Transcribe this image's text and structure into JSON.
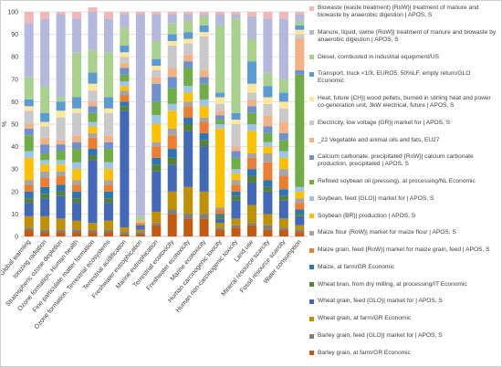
{
  "chart_data": {
    "type": "stacked_bar",
    "y_label": "%",
    "ylim": [
      0,
      100
    ],
    "yticks": [
      0,
      10,
      20,
      30,
      40,
      50,
      60,
      70,
      80,
      90,
      100
    ],
    "grid": true,
    "categories": [
      "Global warming",
      "Ionizing radiation",
      "Stratospheric ozone depletion",
      "Ozone formation, Human health",
      "Fine particulate matter formation",
      "Ozone formation, Terrestrial ecosystems",
      "Terrestrial acidification",
      "Freshwater eutrophication",
      "Marine eutrophication",
      "Terrestrial ecotoxicity",
      "Freshwater ecotoxicity",
      "Marine ecotoxicity",
      "Human carcinogenic toxicity",
      "Human non-carcinogenic toxicity",
      "Land use",
      "Mineral resource scarcity",
      "Fossil resource scarcity",
      "Water consumption"
    ],
    "series": [
      {
        "name": "Biowaste (waste treatment) {RoW}| treatment of manure and biowaste by anaerobic digestion | APOS, S",
        "color": "#f4b6b6",
        "values": [
          5,
          3,
          1,
          3,
          2,
          3,
          1,
          1,
          1,
          1,
          1,
          1,
          1,
          1,
          2,
          3,
          3,
          1
        ]
      },
      {
        "name": "Manure, liquid, swine {RoW}| treatment of manure and biowaste by anaerobic digestion | APOS, S",
        "color": "#b4b8dc",
        "values": [
          24,
          30,
          37,
          15,
          17,
          15,
          6,
          90,
          12,
          4,
          3,
          1,
          5,
          2,
          10,
          24,
          27,
          3
        ]
      },
      {
        "name": "Diesel, combusted in industrial equipment/US",
        "color": "#a9d18e",
        "values": [
          10,
          12,
          2,
          20,
          10,
          20,
          8,
          2,
          8,
          5,
          5,
          4,
          30,
          42,
          10,
          6,
          6,
          2
        ]
      },
      {
        "name": "Transport, truck <10t, EURO5, 50%LF, empty return/GLO Economic",
        "color": "#5b9bd5",
        "values": [
          3,
          4,
          4,
          5,
          5,
          5,
          3,
          0,
          3,
          3,
          3,
          3,
          2,
          3,
          10,
          5,
          4,
          2
        ]
      },
      {
        "name": "Heat, future {CH}| wood pellets, burned in stirling heat and power co-generation unit, 3kW electrical, future | APOS, S",
        "color": "#ffe699",
        "values": [
          2,
          2,
          3,
          2,
          3,
          2,
          2,
          0,
          2,
          2,
          2,
          2,
          3,
          2,
          4,
          3,
          3,
          2
        ]
      },
      {
        "name": "Electricity, low voltage {GR}| market for | APOS, S",
        "color": "#c9c9c9",
        "values": [
          6,
          5,
          10,
          10,
          5,
          10,
          3,
          0,
          3,
          10,
          5,
          15,
          3,
          10,
          3,
          5,
          6,
          2
        ]
      },
      {
        "name": "_22 Vegetable and animal oils and fats, EU27",
        "color": "#f4b183",
        "values": [
          2,
          3,
          2,
          3,
          2,
          3,
          2,
          1,
          3,
          4,
          3,
          3,
          2,
          2,
          3,
          5,
          5,
          14
        ]
      },
      {
        "name": "Calcium carbonate, precipitated {RoW}| calcium carbonate production, precipitated | APOS, S",
        "color": "#6f8fcf",
        "values": [
          3,
          4,
          3,
          3,
          3,
          3,
          3,
          0,
          8,
          5,
          3,
          3,
          2,
          3,
          3,
          3,
          3,
          2
        ]
      },
      {
        "name": "Refined soybean oil (pressing), at processing/NL Economic",
        "color": "#70ad47",
        "values": [
          7,
          3,
          4,
          6,
          4,
          6,
          3,
          0,
          6,
          7,
          8,
          7,
          2,
          5,
          5,
          4,
          5,
          50
        ]
      },
      {
        "name": "Soybean, feed {GLO}| market for | APOS, S",
        "color": "#9dc3e6",
        "values": [
          3,
          2,
          2,
          3,
          2,
          3,
          2,
          0,
          4,
          3,
          3,
          3,
          2,
          2,
          3,
          2,
          3,
          2
        ]
      },
      {
        "name": "Soybean {BR}| production | APOS, S",
        "color": "#ffc000",
        "values": [
          10,
          3,
          3,
          5,
          3,
          5,
          2,
          0,
          8,
          8,
          4,
          5,
          35,
          3,
          10,
          3,
          5,
          3
        ]
      },
      {
        "name": "Maize flour {RoW}| market for maize flour | APOS, S",
        "color": "#a5a5a5",
        "values": [
          2,
          3,
          2,
          2,
          2,
          2,
          2,
          0,
          2,
          3,
          2,
          2,
          1,
          2,
          2,
          4,
          3,
          2
        ]
      },
      {
        "name": "Maize grain, feed {RoW}| market for maize grain, feed | APOS, S",
        "color": "#ed7d31",
        "values": [
          3,
          4,
          4,
          3,
          5,
          3,
          3,
          1,
          5,
          6,
          5,
          5,
          2,
          3,
          5,
          8,
          6,
          3
        ]
      },
      {
        "name": "Maize, at farm/GR Economic",
        "color": "#2e75b6",
        "values": [
          3,
          3,
          3,
          3,
          3,
          3,
          2,
          1,
          3,
          4,
          3,
          3,
          1,
          2,
          3,
          3,
          3,
          2
        ]
      },
      {
        "name": "Wheat bran, from dry milling, at processing/IT Economic",
        "color": "#548235",
        "values": [
          2,
          2,
          2,
          2,
          2,
          2,
          2,
          0,
          3,
          3,
          3,
          3,
          1,
          2,
          3,
          2,
          2,
          1
        ]
      },
      {
        "name": "Wheat grain, feed {GLO}| market for | APOS, S",
        "color": "#4169b8",
        "values": [
          6,
          8,
          10,
          8,
          28,
          8,
          52,
          1,
          18,
          12,
          25,
          20,
          2,
          8,
          10,
          10,
          8,
          4
        ]
      },
      {
        "name": "Wheat grain, at farm/GR Economic",
        "color": "#bf9000",
        "values": [
          5,
          6,
          5,
          4,
          3,
          4,
          2,
          1,
          5,
          8,
          12,
          10,
          2,
          3,
          8,
          5,
          4,
          2
        ]
      },
      {
        "name": "Barley grain, feed {GLO}| market for | APOS, S",
        "color": "#7f7f7f",
        "values": [
          1,
          1,
          1,
          1,
          1,
          1,
          1,
          1,
          1,
          2,
          2,
          2,
          1,
          1,
          1,
          2,
          1,
          1
        ]
      },
      {
        "name": "Barley grain, at farm/GR Economic",
        "color": "#c55a11",
        "values": [
          3,
          2,
          2,
          2,
          2,
          2,
          1,
          1,
          5,
          10,
          8,
          8,
          3,
          4,
          5,
          3,
          3,
          2
        ]
      }
    ]
  }
}
